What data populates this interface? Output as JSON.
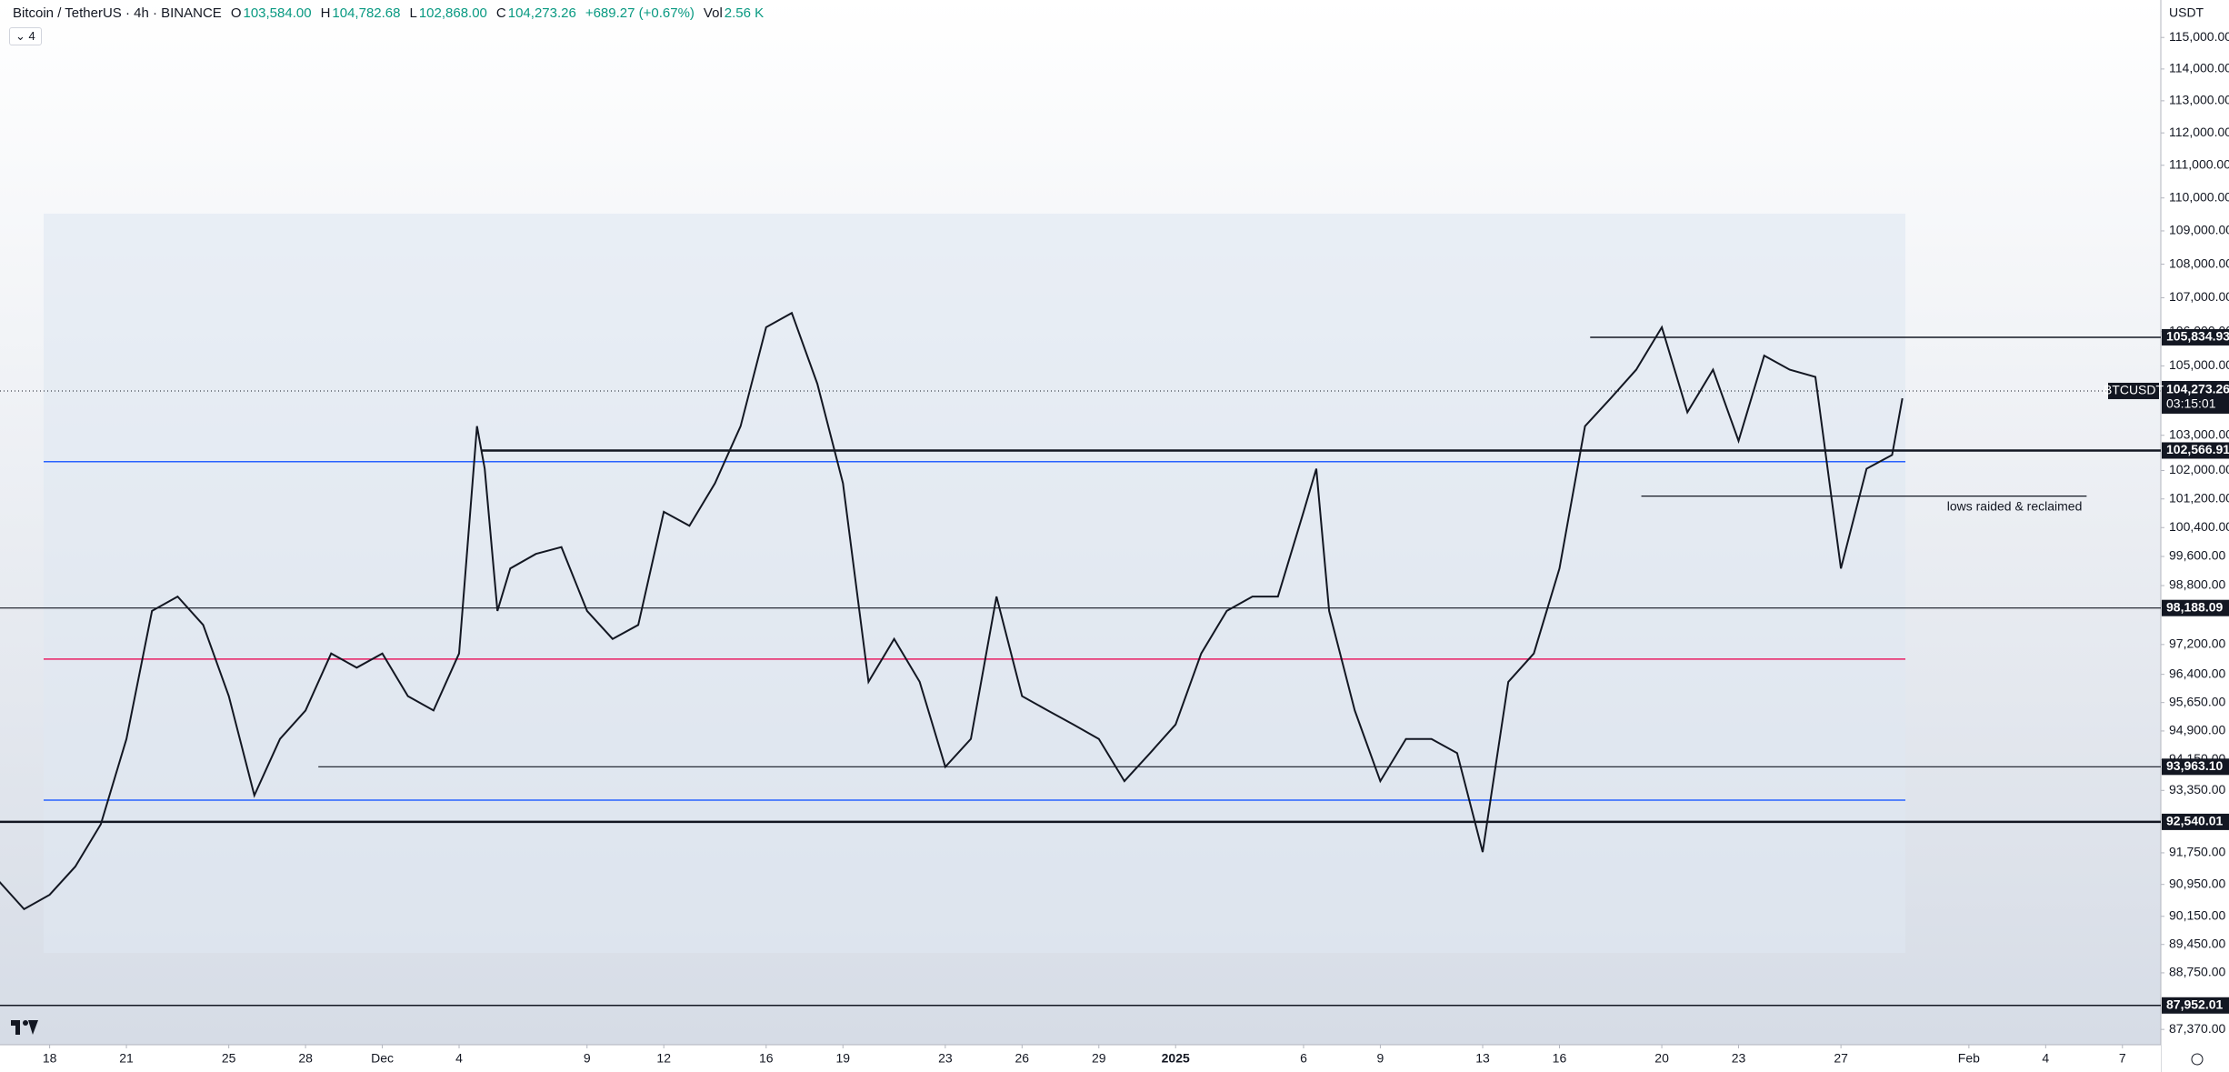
{
  "header": {
    "symbol": "Bitcoin / TetherUS · 4h · BINANCE",
    "ohlc": [
      {
        "key": "O",
        "value": "103,584.00"
      },
      {
        "key": "H",
        "value": "104,782.68"
      },
      {
        "key": "L",
        "value": "102,868.00"
      },
      {
        "key": "C",
        "value": "104,273.26"
      }
    ],
    "change": "+689.27 (+0.67%)",
    "volume": {
      "key": "Vol",
      "value": "2.56 K"
    },
    "indicators_count": "4"
  },
  "currency": "USDT",
  "chart_data": {
    "type": "line",
    "color": "#131722",
    "log_scale": true,
    "xlim": [
      -1.94,
      82.5
    ],
    "ylim": [
      87000,
      116200
    ],
    "x": [
      -2,
      -1,
      0,
      1,
      2,
      3,
      4,
      5,
      6,
      7,
      8,
      9,
      10,
      11,
      12,
      13,
      14,
      15,
      16,
      16.7,
      17,
      17.5,
      18,
      19,
      20,
      21,
      22,
      23,
      24,
      25,
      26,
      27,
      28,
      29,
      30,
      31,
      32,
      33,
      34,
      35,
      36,
      37,
      38,
      39,
      40,
      41,
      42,
      43,
      44,
      45,
      46,
      47,
      48,
      49,
      49.5,
      50,
      51,
      52,
      53,
      54,
      55,
      56,
      57,
      58,
      59,
      60,
      61,
      62,
      63,
      64,
      65,
      66,
      67,
      68,
      69,
      70,
      71,
      72,
      72.4
    ],
    "values": [
      91045,
      90330,
      90690,
      91400,
      92480,
      94690,
      98110,
      98500,
      97730,
      95820,
      93220,
      94690,
      95440,
      96960,
      96580,
      96960,
      95820,
      95440,
      96960,
      103260,
      102050,
      98110,
      99270,
      99670,
      99860,
      98110,
      97350,
      97730,
      100840,
      100450,
      101640,
      103260,
      106130,
      106550,
      104480,
      101640,
      96200,
      97350,
      96200,
      93960,
      94690,
      98500,
      95820,
      95440,
      95070,
      94690,
      93590,
      94320,
      95070,
      96960,
      98110,
      98500,
      98500,
      100840,
      102050,
      98110,
      95440,
      93590,
      94690,
      94690,
      94320,
      91770,
      96200,
      96960,
      99270,
      103260,
      104060,
      104890,
      106130,
      103660,
      104890,
      102840,
      105300,
      104890,
      104680,
      99270,
      102050,
      102440,
      104060
    ],
    "xticks": [
      {
        "value": 0,
        "label": "18"
      },
      {
        "value": 3,
        "label": "21"
      },
      {
        "value": 7,
        "label": "25"
      },
      {
        "value": 10,
        "label": "28"
      },
      {
        "value": 13,
        "label": "Dec"
      },
      {
        "value": 16,
        "label": "4"
      },
      {
        "value": 21,
        "label": "9"
      },
      {
        "value": 24,
        "label": "12"
      },
      {
        "value": 28,
        "label": "16"
      },
      {
        "value": 31,
        "label": "19"
      },
      {
        "value": 35,
        "label": "23"
      },
      {
        "value": 38,
        "label": "26"
      },
      {
        "value": 41,
        "label": "29"
      },
      {
        "value": 44,
        "label": "2025"
      },
      {
        "value": 49,
        "label": "6"
      },
      {
        "value": 52,
        "label": "9"
      },
      {
        "value": 56,
        "label": "13"
      },
      {
        "value": 59,
        "label": "16"
      },
      {
        "value": 63,
        "label": "20"
      },
      {
        "value": 66,
        "label": "23"
      },
      {
        "value": 70,
        "label": "27"
      },
      {
        "value": 75,
        "label": "Feb"
      },
      {
        "value": 78,
        "label": "4"
      },
      {
        "value": 81,
        "label": "7"
      }
    ],
    "yticks": [
      {
        "value": 115000,
        "label": "115,000.00"
      },
      {
        "value": 114000,
        "label": "114,000.00"
      },
      {
        "value": 113000,
        "label": "113,000.00"
      },
      {
        "value": 112000,
        "label": "112,000.00"
      },
      {
        "value": 111000,
        "label": "111,000.00"
      },
      {
        "value": 110000,
        "label": "110,000.00"
      },
      {
        "value": 109000,
        "label": "109,000.00"
      },
      {
        "value": 108000,
        "label": "108,000.00"
      },
      {
        "value": 107000,
        "label": "107,000.00"
      },
      {
        "value": 106000,
        "label": "106,000.00"
      },
      {
        "value": 105000,
        "label": "105,000.00"
      },
      {
        "value": 103000,
        "label": "103,000.00"
      },
      {
        "value": 102000,
        "label": "102,000.00"
      },
      {
        "value": 101200,
        "label": "101,200.00"
      },
      {
        "value": 100400,
        "label": "100,400.00"
      },
      {
        "value": 99600,
        "label": "99,600.00"
      },
      {
        "value": 98800,
        "label": "98,800.00"
      },
      {
        "value": 97200,
        "label": "97,200.00"
      },
      {
        "value": 96400,
        "label": "96,400.00"
      },
      {
        "value": 95650,
        "label": "95,650.00"
      },
      {
        "value": 94900,
        "label": "94,900.00"
      },
      {
        "value": 94150,
        "label": "94,150.00"
      },
      {
        "value": 93350,
        "label": "93,350.00"
      },
      {
        "value": 91750,
        "label": "91,750.00"
      },
      {
        "value": 90950,
        "label": "90,950.00"
      },
      {
        "value": 90150,
        "label": "90,150.00"
      },
      {
        "value": 89450,
        "label": "89,450.00"
      },
      {
        "value": 88750,
        "label": "88,750.00"
      },
      {
        "value": 87370,
        "label": "87,370.00"
      }
    ],
    "levels": [
      {
        "value": 105834.93,
        "label": "105,834.93",
        "from": 60.2,
        "width": 1.5
      },
      {
        "value": 102566.91,
        "label": "102,566.91",
        "from": 16.9,
        "width": 2.5
      },
      {
        "value": 98188.09,
        "label": "98,188.09",
        "from": -1.94,
        "width": 1.2
      },
      {
        "value": 93963.1,
        "label": "93,963.10",
        "from": 10.5,
        "width": 1.2
      },
      {
        "value": 92540.01,
        "label": "92,540.01",
        "from": -1.94,
        "width": 2.5
      },
      {
        "value": 87952.01,
        "label": "87,952.01",
        "from": -1.94,
        "width": 1.5
      }
    ],
    "profile_lines": [
      {
        "value": 102250,
        "color": "#2962ff"
      },
      {
        "value": 96810,
        "color": "#e91e63"
      },
      {
        "value": 93100,
        "color": "#2962ff"
      }
    ],
    "last_price": {
      "value": 104273.26,
      "label": "104,273.26",
      "symbol": "BTCUSDT",
      "countdown": "03:15:01"
    },
    "annotation": {
      "text": "lows raided & reclaimed",
      "value": 101280,
      "x": [
        62.2,
        79.6
      ]
    }
  }
}
